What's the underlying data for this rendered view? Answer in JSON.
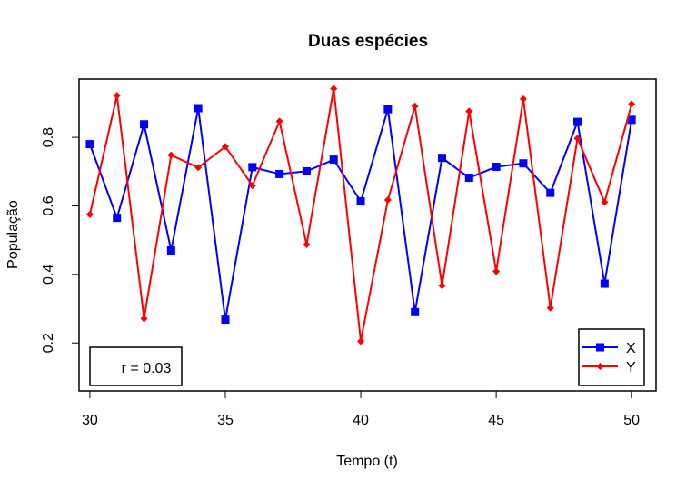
{
  "chart_data": {
    "type": "line",
    "title": "Duas espécies",
    "xlabel": "Tempo (t)",
    "ylabel": "População",
    "xlim": [
      29.6,
      50.9
    ],
    "ylim": [
      0.06,
      0.97
    ],
    "xticks": [
      30,
      35,
      40,
      45,
      50
    ],
    "xtick_labels": [
      "30",
      "35",
      "40",
      "45",
      "50"
    ],
    "yticks": [
      0.2,
      0.4,
      0.6,
      0.8
    ],
    "ytick_labels": [
      "0.2",
      "0.4",
      "0.6",
      "0.8"
    ],
    "grid": false,
    "legend_position": "bottom-right",
    "x": [
      30,
      31,
      32,
      33,
      34,
      35,
      36,
      37,
      38,
      39,
      40,
      41,
      42,
      43,
      44,
      45,
      46,
      47,
      48,
      49,
      50
    ],
    "series": [
      {
        "name": "X",
        "color": "#0000ff",
        "marker": "square",
        "values": [
          0.78,
          0.565,
          0.838,
          0.47,
          0.885,
          0.268,
          0.713,
          0.693,
          0.701,
          0.735,
          0.613,
          0.882,
          0.29,
          0.74,
          0.682,
          0.714,
          0.724,
          0.638,
          0.845,
          0.373,
          0.851
        ]
      },
      {
        "name": "Y",
        "color": "#ff0000",
        "marker": "diamond",
        "values": [
          0.575,
          0.922,
          0.271,
          0.748,
          0.712,
          0.773,
          0.659,
          0.847,
          0.487,
          0.942,
          0.205,
          0.617,
          0.891,
          0.367,
          0.876,
          0.409,
          0.912,
          0.302,
          0.797,
          0.611,
          0.897
        ]
      }
    ],
    "annotation": "r = 0.03"
  }
}
